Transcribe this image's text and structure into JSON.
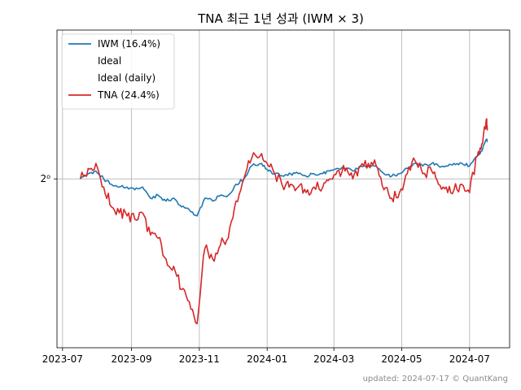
{
  "title": "TNA 최근 1년 성과 (IWM × 3)",
  "footer": "updated: 2024-07-17 © QuantKang",
  "colors": {
    "iwm": "#1f77b4",
    "tna": "#d62728",
    "grid": "#b0b0b0",
    "axis": "#000000"
  },
  "chart_data": {
    "type": "line",
    "title": "TNA 최근 1년 성과 (IWM × 3)",
    "xlabel": "",
    "ylabel": "",
    "y_scale": "log2",
    "grid": true,
    "legend_position": "top-left",
    "x_ticks": [
      "2023-07",
      "2023-09",
      "2023-11",
      "2024-01",
      "2024-03",
      "2024-05",
      "2024-07"
    ],
    "y_ticks": [
      {
        "value": 1.0,
        "label": "2⁰"
      }
    ],
    "xlim": [
      "2023-06-26",
      "2024-08-06"
    ],
    "ylim": [
      0.53,
      1.75
    ],
    "legend": [
      {
        "label": "IWM (16.4%)",
        "color": "#1f77b4",
        "visible_line": true
      },
      {
        "label": "Ideal",
        "color": "",
        "visible_line": false
      },
      {
        "label": "Ideal (daily)",
        "color": "",
        "visible_line": false
      },
      {
        "label": "TNA (24.4%)",
        "color": "#d62728",
        "visible_line": true
      }
    ],
    "series": [
      {
        "name": "IWM (16.4%)",
        "color": "#1f77b4",
        "x": [
          "2023-07-17",
          "2023-07-24",
          "2023-07-31",
          "2023-08-07",
          "2023-08-14",
          "2023-08-21",
          "2023-08-28",
          "2023-09-04",
          "2023-09-11",
          "2023-09-18",
          "2023-09-25",
          "2023-10-02",
          "2023-10-09",
          "2023-10-16",
          "2023-10-23",
          "2023-10-30",
          "2023-11-06",
          "2023-11-13",
          "2023-11-20",
          "2023-11-27",
          "2023-12-04",
          "2023-12-11",
          "2023-12-18",
          "2023-12-27",
          "2024-01-02",
          "2024-01-08",
          "2024-01-16",
          "2024-01-22",
          "2024-01-29",
          "2024-02-05",
          "2024-02-12",
          "2024-02-20",
          "2024-02-26",
          "2024-03-04",
          "2024-03-11",
          "2024-03-18",
          "2024-03-25",
          "2024-04-01",
          "2024-04-08",
          "2024-04-15",
          "2024-04-22",
          "2024-04-29",
          "2024-05-06",
          "2024-05-13",
          "2024-05-20",
          "2024-05-28",
          "2024-06-03",
          "2024-06-10",
          "2024-06-17",
          "2024-06-24",
          "2024-07-01",
          "2024-07-08",
          "2024-07-12",
          "2024-07-16",
          "2024-07-17"
        ],
        "values": [
          1.0,
          1.02,
          1.03,
          1.0,
          0.98,
          0.97,
          0.97,
          0.96,
          0.97,
          0.93,
          0.94,
          0.92,
          0.93,
          0.9,
          0.89,
          0.87,
          0.93,
          0.92,
          0.94,
          0.94,
          0.98,
          1.0,
          1.05,
          1.06,
          1.03,
          1.02,
          1.01,
          1.02,
          1.02,
          1.01,
          1.02,
          1.02,
          1.03,
          1.04,
          1.04,
          1.03,
          1.05,
          1.05,
          1.05,
          1.02,
          1.01,
          1.02,
          1.04,
          1.06,
          1.05,
          1.06,
          1.05,
          1.05,
          1.06,
          1.06,
          1.05,
          1.09,
          1.11,
          1.16,
          1.15
        ]
      },
      {
        "name": "TNA (24.4%)",
        "color": "#d62728",
        "x": [
          "2023-07-17",
          "2023-07-24",
          "2023-07-31",
          "2023-08-07",
          "2023-08-14",
          "2023-08-21",
          "2023-08-28",
          "2023-09-04",
          "2023-09-11",
          "2023-09-18",
          "2023-09-25",
          "2023-10-02",
          "2023-10-09",
          "2023-10-16",
          "2023-10-23",
          "2023-10-30",
          "2023-11-06",
          "2023-11-13",
          "2023-11-20",
          "2023-11-27",
          "2023-12-04",
          "2023-12-11",
          "2023-12-18",
          "2023-12-27",
          "2024-01-02",
          "2024-01-08",
          "2024-01-16",
          "2024-01-22",
          "2024-01-29",
          "2024-02-05",
          "2024-02-12",
          "2024-02-20",
          "2024-02-26",
          "2024-03-04",
          "2024-03-11",
          "2024-03-18",
          "2024-03-25",
          "2024-04-01",
          "2024-04-08",
          "2024-04-15",
          "2024-04-22",
          "2024-04-29",
          "2024-05-06",
          "2024-05-13",
          "2024-05-20",
          "2024-05-28",
          "2024-06-03",
          "2024-06-10",
          "2024-06-17",
          "2024-06-24",
          "2024-07-01",
          "2024-07-08",
          "2024-07-12",
          "2024-07-16",
          "2024-07-17"
        ],
        "values": [
          1.0,
          1.04,
          1.06,
          0.97,
          0.9,
          0.88,
          0.87,
          0.86,
          0.88,
          0.81,
          0.8,
          0.74,
          0.72,
          0.66,
          0.63,
          0.58,
          0.77,
          0.74,
          0.78,
          0.8,
          0.92,
          1.0,
          1.08,
          1.1,
          1.05,
          1.02,
          0.96,
          0.98,
          0.97,
          0.95,
          0.97,
          0.97,
          1.0,
          1.03,
          1.03,
          1.0,
          1.05,
          1.06,
          1.05,
          0.96,
          0.93,
          0.95,
          1.02,
          1.07,
          1.02,
          1.03,
          0.98,
          0.97,
          0.96,
          0.98,
          0.95,
          1.09,
          1.14,
          1.25,
          1.2
        ]
      }
    ]
  }
}
